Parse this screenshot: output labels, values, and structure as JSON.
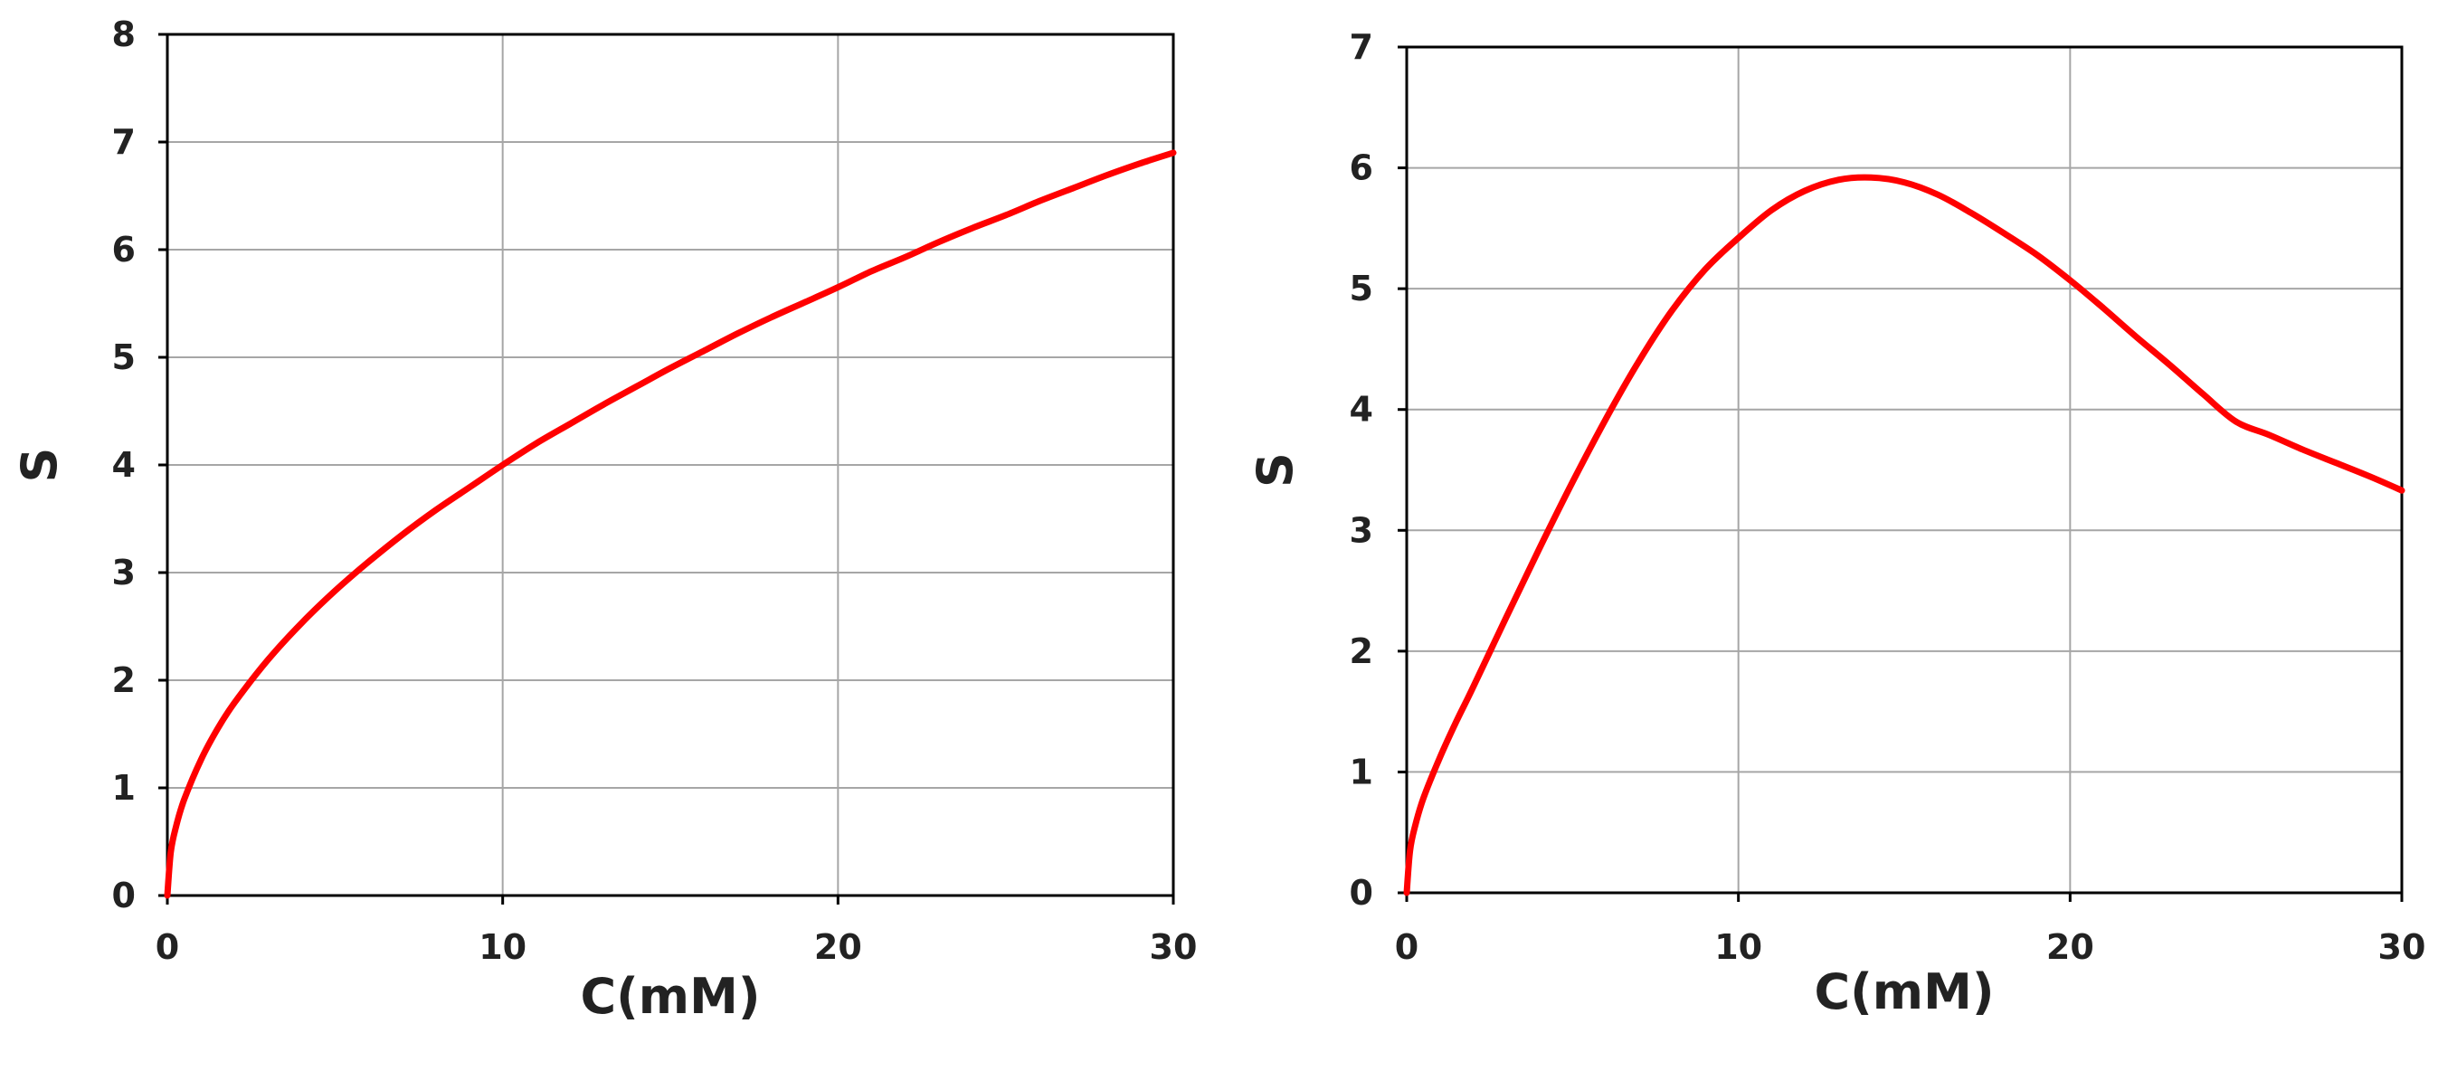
{
  "chart_data": [
    {
      "type": "line",
      "xlabel": "C(mM)",
      "ylabel": "S",
      "xlim": [
        0,
        30
      ],
      "ylim": [
        0,
        8
      ],
      "xticks": [
        0,
        10,
        20,
        30
      ],
      "yticks": [
        0,
        1,
        2,
        3,
        4,
        5,
        6,
        7,
        8
      ],
      "grid": true,
      "series": [
        {
          "color": "#ff0000",
          "x": [
            0,
            0.1,
            0.25,
            0.5,
            1,
            1.5,
            2,
            3,
            4,
            5,
            6,
            7,
            8,
            9,
            10,
            11,
            12,
            13,
            14,
            15,
            16,
            17,
            18,
            19,
            20,
            21,
            22,
            23,
            24,
            25,
            26,
            27,
            28,
            29,
            30
          ],
          "y": [
            0,
            0.4,
            0.63,
            0.89,
            1.26,
            1.55,
            1.79,
            2.19,
            2.53,
            2.83,
            3.1,
            3.35,
            3.58,
            3.79,
            4.0,
            4.2,
            4.38,
            4.56,
            4.73,
            4.9,
            5.06,
            5.22,
            5.37,
            5.51,
            5.65,
            5.8,
            5.93,
            6.07,
            6.2,
            6.32,
            6.45,
            6.57,
            6.69,
            6.8,
            6.9
          ]
        }
      ]
    },
    {
      "type": "line",
      "xlabel": "C(mM)",
      "ylabel": "S",
      "xlim": [
        0,
        30
      ],
      "ylim": [
        0,
        7
      ],
      "xticks": [
        0,
        10,
        20,
        30
      ],
      "yticks": [
        0,
        1,
        2,
        3,
        4,
        5,
        6,
        7
      ],
      "grid": true,
      "series": [
        {
          "color": "#ff0000",
          "x": [
            0,
            0.1,
            0.25,
            0.5,
            1,
            1.5,
            2,
            3,
            4,
            5,
            6,
            7,
            8,
            9,
            10,
            11,
            12,
            13,
            14,
            15,
            16,
            17,
            18,
            19,
            20,
            21,
            22,
            23,
            24,
            25,
            26,
            27,
            28,
            29,
            30
          ],
          "y": [
            0,
            0.35,
            0.55,
            0.78,
            1.12,
            1.42,
            1.7,
            2.28,
            2.85,
            3.4,
            3.92,
            4.4,
            4.82,
            5.16,
            5.42,
            5.65,
            5.81,
            5.9,
            5.92,
            5.88,
            5.78,
            5.63,
            5.46,
            5.28,
            5.07,
            4.84,
            4.6,
            4.37,
            4.13,
            3.9,
            3.79,
            3.67,
            3.56,
            3.45,
            3.33
          ]
        }
      ]
    }
  ]
}
